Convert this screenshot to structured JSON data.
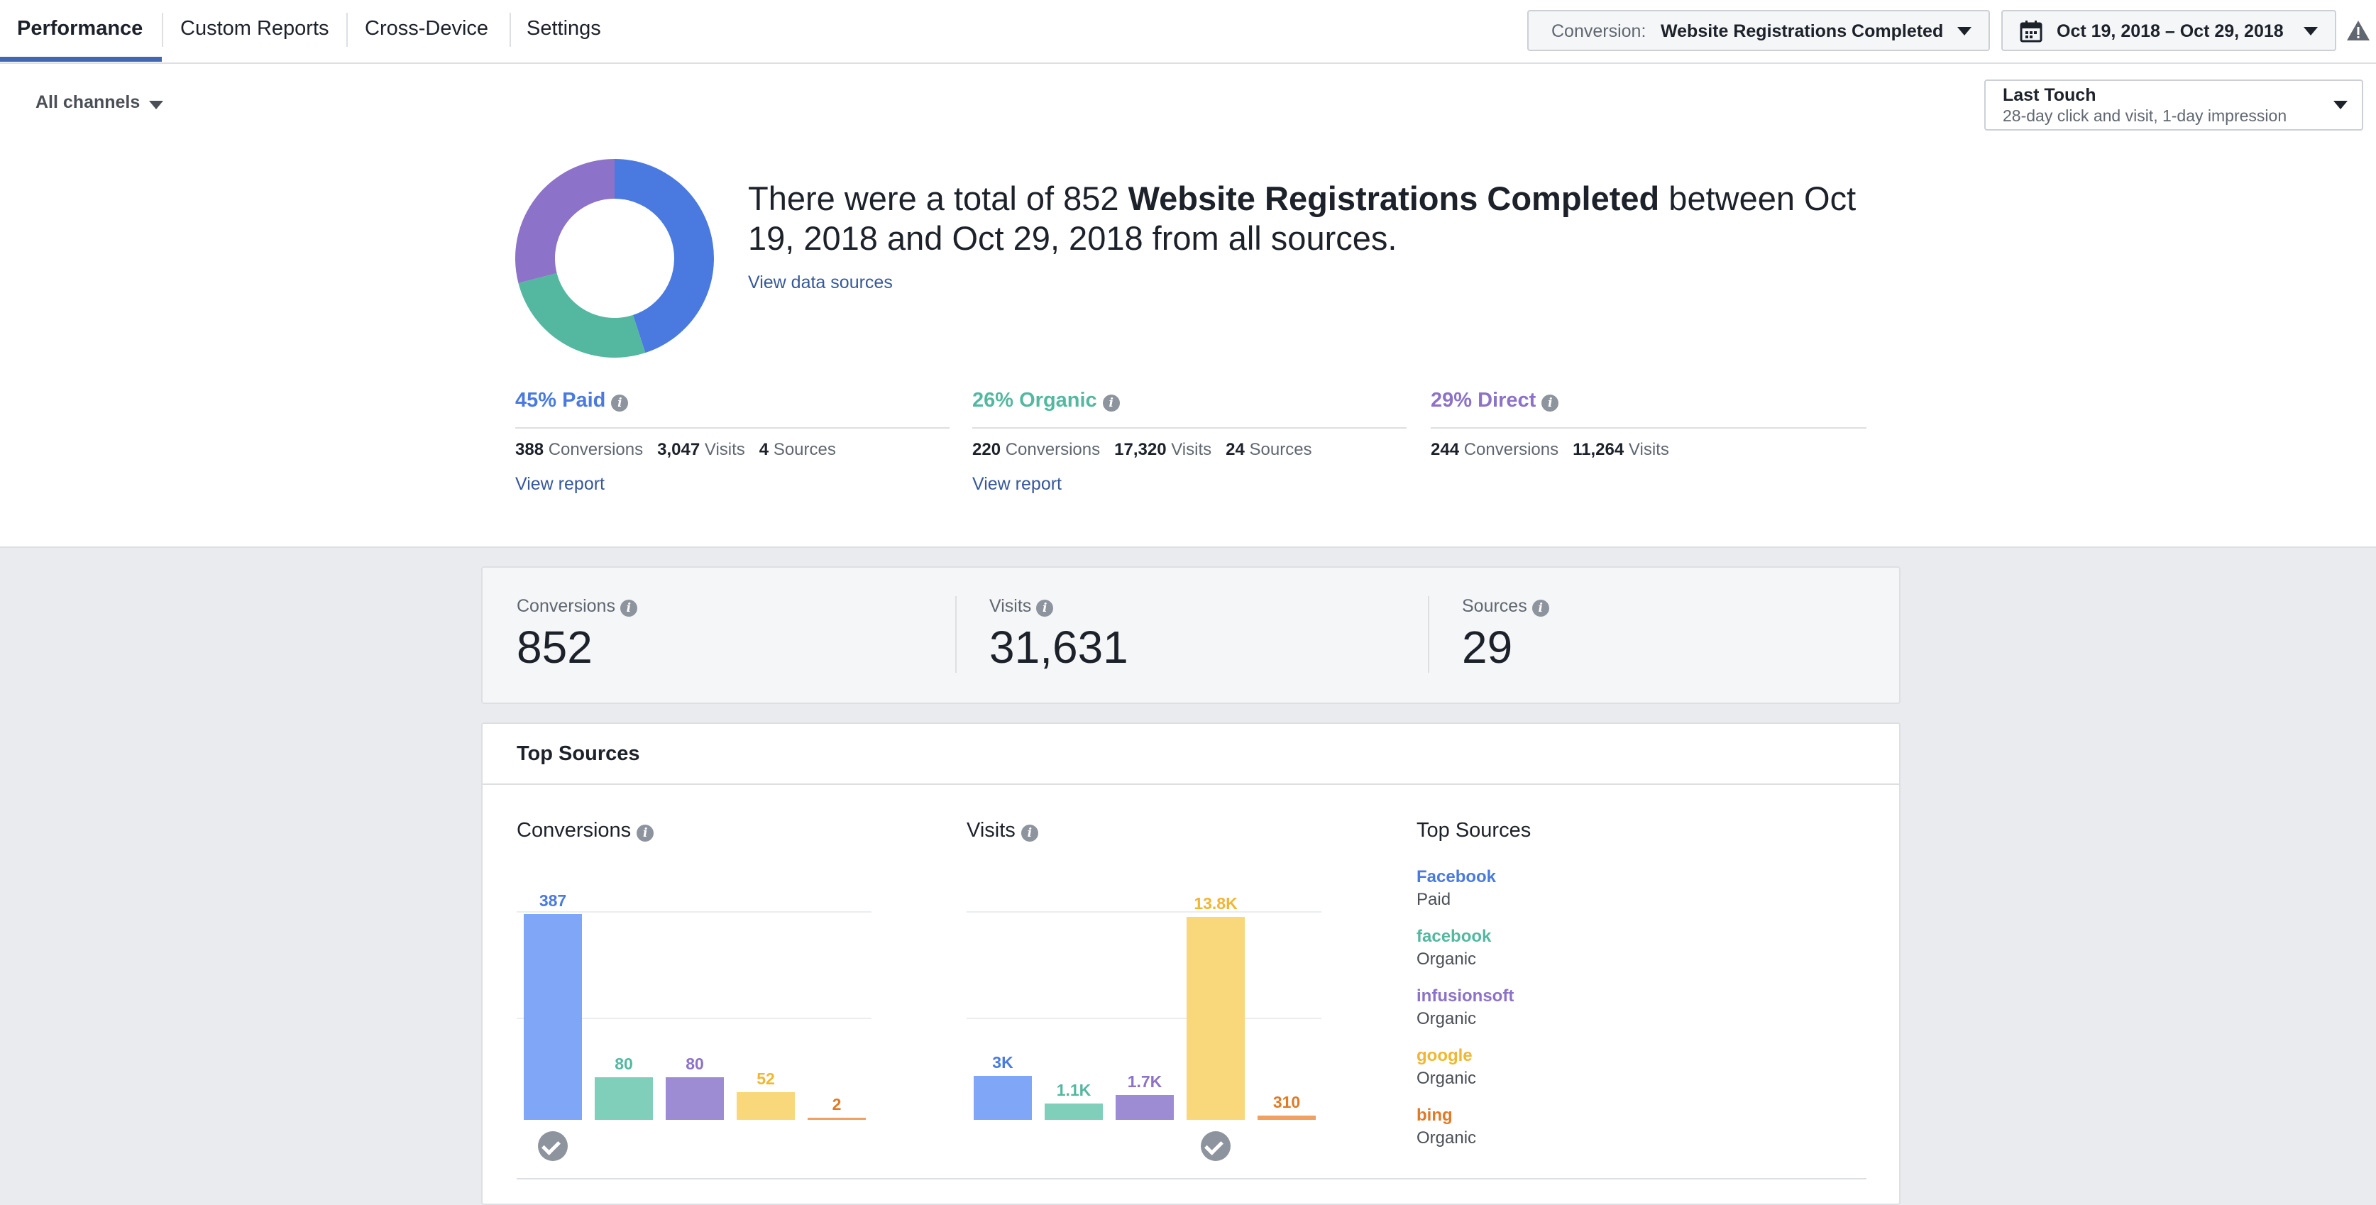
{
  "tabs": [
    "Performance",
    "Custom Reports",
    "Cross-Device",
    "Settings"
  ],
  "conversion_dropdown": {
    "label": "Conversion:",
    "value": "Website Registrations Completed"
  },
  "date_range": "Oct 19, 2018 – Oct 29, 2018",
  "channels_filter": "All channels",
  "attribution": {
    "title": "Last Touch",
    "subtitle": "28-day click and visit, 1-day impression"
  },
  "summary": {
    "prefix": "There were a total of 852 ",
    "bold": "Website Registrations Completed",
    "line1_suffix": " between Oct",
    "line2": "19, 2018 and Oct 29, 2018 from all sources.",
    "link": "View data sources"
  },
  "donut": {
    "paid": 45,
    "organic": 26,
    "direct": 29
  },
  "channels": [
    {
      "title": "45% Paid",
      "color": "#4a7ae0",
      "conversions": "388",
      "visits": "3,047",
      "sources": "4",
      "link": "View report"
    },
    {
      "title": "26% Organic",
      "color": "#54b8a0",
      "conversions": "220",
      "visits": "17,320",
      "sources": "24",
      "link": "View report"
    },
    {
      "title": "29% Direct",
      "color": "#8c72c8",
      "conversions": "244",
      "visits": "11,264",
      "sources": "",
      "link": ""
    }
  ],
  "labels": {
    "conversions": "Conversions",
    "visits": "Visits",
    "sources": "Sources"
  },
  "metrics": [
    {
      "label": "Conversions",
      "value": "852"
    },
    {
      "label": "Visits",
      "value": "31,631"
    },
    {
      "label": "Sources",
      "value": "29"
    }
  ],
  "top_sources": {
    "title": "Top Sources",
    "list_title": "Top Sources",
    "list": [
      {
        "name": "Facebook",
        "type": "Paid",
        "color": "#4a7ae0"
      },
      {
        "name": "facebook",
        "type": "Organic",
        "color": "#54b8a0"
      },
      {
        "name": "infusionsoft",
        "type": "Organic",
        "color": "#8c72c8"
      },
      {
        "name": "google",
        "type": "Organic",
        "color": "#f2b632"
      },
      {
        "name": "bing",
        "type": "Organic",
        "color": "#e07a27"
      }
    ]
  },
  "chart_data": [
    {
      "type": "bar",
      "title": "Conversions",
      "categories": [
        "Facebook",
        "facebook",
        "infusionsoft",
        "google",
        "bing"
      ],
      "values": [
        387,
        80,
        80,
        52,
        2
      ],
      "value_labels": [
        "387",
        "80",
        "80",
        "52",
        "2"
      ],
      "ylim": [
        0,
        400
      ],
      "grid": true
    },
    {
      "type": "bar",
      "title": "Visits",
      "categories": [
        "Facebook",
        "facebook",
        "infusionsoft",
        "google",
        "bing"
      ],
      "values": [
        3000,
        1100,
        1700,
        13800,
        310
      ],
      "value_labels": [
        "3K",
        "1.1K",
        "1.7K",
        "13.8K",
        "310"
      ],
      "ylim": [
        0,
        14500
      ],
      "grid": true
    }
  ]
}
